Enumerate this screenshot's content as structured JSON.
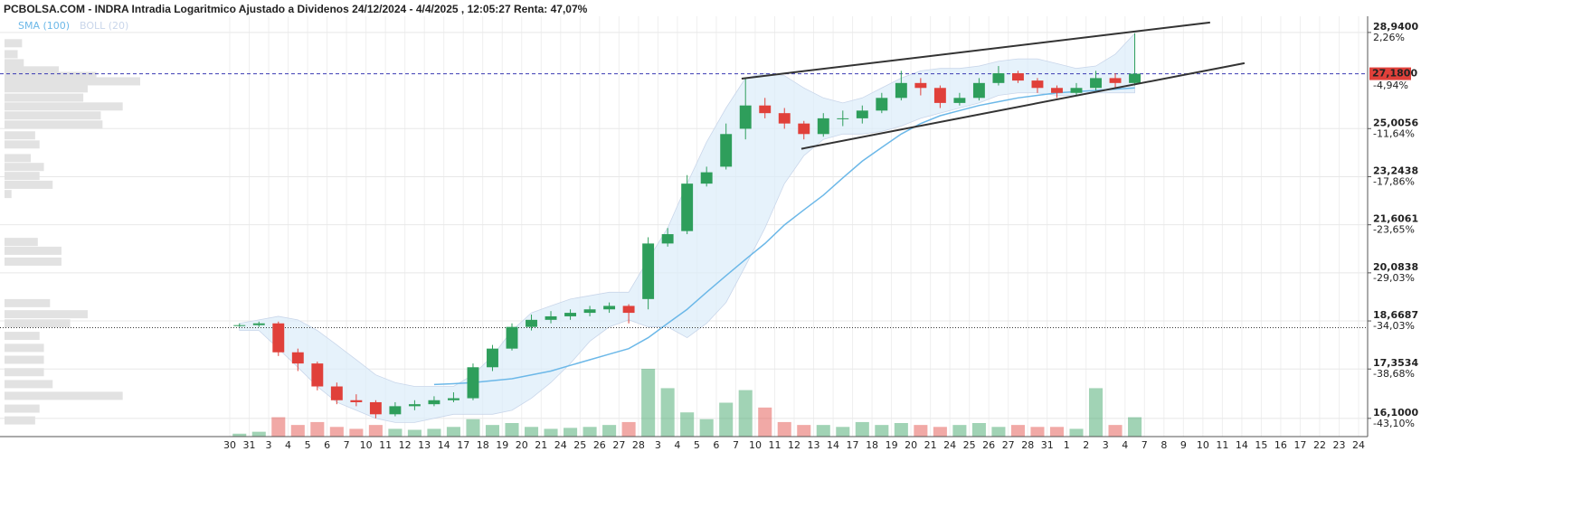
{
  "chart_data": {
    "type": "candlestick",
    "title": "PCBOLSA.COM - INDRA Intradia Logaritmico Ajustado a Dividenos 24/12/2024 - 4/4/2025 , 12:05:27 Renta: 47,07%",
    "categories": [
      "30",
      "31",
      "3",
      "4",
      "5",
      "6",
      "7",
      "10",
      "11",
      "12",
      "13",
      "14",
      "17",
      "18",
      "19",
      "20",
      "21",
      "24",
      "25",
      "26",
      "27",
      "28",
      "3",
      "4",
      "5",
      "6",
      "7",
      "10",
      "11",
      "12",
      "13",
      "14",
      "17",
      "18",
      "19",
      "20",
      "21",
      "24",
      "25",
      "26",
      "27",
      "28",
      "31",
      "1",
      "2",
      "3",
      "4",
      "7",
      "8",
      "9",
      "10",
      "11",
      "14",
      "15",
      "16",
      "17",
      "22",
      "23",
      "24"
    ],
    "open": [
      18.55,
      18.55,
      18.6,
      17.8,
      17.5,
      16.9,
      16.55,
      16.5,
      16.2,
      16.4,
      16.45,
      16.55,
      16.6,
      17.4,
      17.9,
      18.5,
      18.7,
      18.8,
      18.9,
      19.0,
      19.1,
      19.3,
      21.0,
      21.4,
      23.0,
      23.6,
      25.0,
      25.9,
      25.6,
      25.2,
      24.8,
      25.4,
      25.4,
      25.7,
      26.2,
      26.8,
      26.6,
      26.0,
      26.2,
      26.8,
      27.2,
      26.9,
      26.6,
      26.4,
      26.6,
      27.0,
      26.8,
      null,
      null,
      null,
      null,
      null,
      null,
      null,
      null,
      null,
      null,
      null,
      null
    ],
    "high": [
      18.6,
      18.65,
      18.65,
      17.9,
      17.55,
      17.0,
      16.7,
      16.55,
      16.5,
      16.55,
      16.65,
      16.75,
      17.5,
      18.0,
      18.6,
      18.85,
      18.95,
      19.0,
      19.1,
      19.2,
      19.15,
      21.2,
      21.5,
      23.3,
      23.6,
      25.2,
      27.0,
      26.2,
      25.8,
      25.3,
      25.6,
      25.7,
      25.9,
      26.4,
      27.3,
      27.0,
      26.7,
      26.4,
      27.0,
      27.5,
      27.3,
      27.0,
      26.7,
      26.8,
      27.3,
      27.2,
      28.9,
      null,
      null,
      null,
      null,
      null,
      null,
      null,
      null,
      null,
      null,
      null,
      null
    ],
    "low": [
      18.5,
      18.5,
      17.7,
      17.3,
      16.8,
      16.45,
      16.4,
      16.1,
      16.15,
      16.3,
      16.4,
      16.5,
      16.55,
      17.3,
      17.85,
      18.4,
      18.6,
      18.7,
      18.8,
      18.9,
      18.6,
      19.0,
      20.9,
      21.3,
      22.9,
      23.5,
      24.6,
      25.4,
      25.0,
      24.6,
      24.7,
      25.1,
      25.2,
      25.6,
      26.1,
      26.3,
      25.8,
      25.9,
      26.1,
      26.7,
      26.8,
      26.4,
      26.2,
      26.3,
      26.5,
      26.6,
      26.7,
      null,
      null,
      null,
      null,
      null,
      null,
      null,
      null,
      null,
      null,
      null,
      null
    ],
    "close": [
      18.55,
      18.6,
      17.8,
      17.5,
      16.9,
      16.55,
      16.5,
      16.2,
      16.4,
      16.45,
      16.55,
      16.6,
      17.4,
      17.9,
      18.5,
      18.7,
      18.8,
      18.9,
      19.0,
      19.1,
      18.9,
      21.0,
      21.3,
      23.0,
      23.4,
      24.8,
      25.9,
      25.6,
      25.2,
      24.8,
      25.4,
      25.4,
      25.7,
      26.2,
      26.8,
      26.6,
      26.0,
      26.2,
      26.8,
      27.2,
      26.9,
      26.6,
      26.4,
      26.6,
      27.0,
      26.8,
      27.18,
      null,
      null,
      null,
      null,
      null,
      null,
      null,
      null,
      null,
      null,
      null,
      null
    ],
    "volume": [
      3,
      5,
      20,
      12,
      15,
      10,
      8,
      12,
      8,
      7,
      8,
      10,
      18,
      12,
      14,
      10,
      8,
      9,
      10,
      12,
      15,
      70,
      50,
      25,
      18,
      35,
      48,
      30,
      15,
      12,
      12,
      10,
      15,
      12,
      14,
      12,
      10,
      12,
      14,
      10,
      12,
      10,
      10,
      8,
      50,
      12,
      20,
      null,
      null,
      null,
      null,
      null,
      null,
      null,
      null,
      null,
      null,
      null,
      null
    ],
    "up_color": "#2e9e5b",
    "down_color": "#e0403a",
    "sma": {
      "name": "SMA (100)",
      "color": "#6cb8e8",
      "values": [
        null,
        null,
        null,
        null,
        null,
        null,
        null,
        null,
        null,
        null,
        16.95,
        16.97,
        17.0,
        17.05,
        17.1,
        17.2,
        17.3,
        17.45,
        17.6,
        17.75,
        17.9,
        18.2,
        18.6,
        19.0,
        19.5,
        20.0,
        20.5,
        21.0,
        21.6,
        22.1,
        22.6,
        23.2,
        23.8,
        24.3,
        24.8,
        25.2,
        25.5,
        25.7,
        25.9,
        26.05,
        26.2,
        26.3,
        26.4,
        26.45,
        26.5,
        26.55,
        26.6,
        null,
        null,
        null,
        null,
        null,
        null,
        null,
        null,
        null,
        null,
        null,
        null
      ]
    },
    "boll": {
      "name": "BOLL (20)",
      "color": "#c9d6ea",
      "upper": [
        18.6,
        18.7,
        18.8,
        18.7,
        18.4,
        18.0,
        17.6,
        17.2,
        17.0,
        16.9,
        16.9,
        16.9,
        17.2,
        17.7,
        18.4,
        18.9,
        19.1,
        19.3,
        19.4,
        19.5,
        19.5,
        20.5,
        21.5,
        23.0,
        24.5,
        25.8,
        27.0,
        27.2,
        27.1,
        26.6,
        26.2,
        26.0,
        26.2,
        26.6,
        27.0,
        27.3,
        27.4,
        27.4,
        27.5,
        27.7,
        27.8,
        27.8,
        27.6,
        27.4,
        27.5,
        28.0,
        28.9,
        null,
        null,
        null,
        null,
        null,
        null,
        null,
        null,
        null,
        null,
        null,
        null
      ],
      "lower": [
        18.4,
        18.4,
        17.9,
        17.4,
        16.9,
        16.5,
        16.3,
        16.1,
        16.0,
        16.0,
        16.1,
        16.2,
        16.2,
        16.2,
        16.3,
        16.6,
        17.0,
        17.5,
        18.1,
        18.5,
        18.7,
        18.5,
        18.5,
        18.2,
        18.6,
        19.2,
        20.3,
        21.5,
        23.0,
        24.0,
        24.6,
        24.8,
        24.8,
        24.9,
        25.1,
        25.4,
        25.6,
        25.8,
        26.0,
        26.3,
        26.4,
        26.4,
        26.3,
        26.3,
        26.4,
        26.4,
        26.4,
        null,
        null,
        null,
        null,
        null,
        null,
        null,
        null,
        null,
        null,
        null,
        null
      ]
    },
    "log_scale": true,
    "grid": true,
    "ylim": [
      15.66,
      29.66
    ],
    "yticks": [
      {
        "value": 28.94,
        "label": "28,9400"
      },
      {
        "value": 25.0056,
        "label": "25,0056"
      },
      {
        "value": 23.2438,
        "label": "23,2438"
      },
      {
        "value": 21.6061,
        "label": "21,6061"
      },
      {
        "value": 20.0838,
        "label": "20,0838"
      },
      {
        "value": 18.6687,
        "label": "18,6687"
      },
      {
        "value": 17.3534,
        "label": "17,3534"
      },
      {
        "value": 16.1,
        "label": "16,1000"
      }
    ],
    "percent_ticks": [
      {
        "value": 28.94,
        "label": "2,26%"
      },
      {
        "value": 26.9,
        "label": "-4,94%"
      },
      {
        "value": 25.0056,
        "label": "-11,64%"
      },
      {
        "value": 23.2438,
        "label": "-17,86%"
      },
      {
        "value": 21.6061,
        "label": "-23,65%"
      },
      {
        "value": 20.0838,
        "label": "-29,03%"
      },
      {
        "value": 18.6687,
        "label": "-34,03%"
      },
      {
        "value": 17.3534,
        "label": "-38,68%"
      },
      {
        "value": 16.1,
        "label": "-43,10%"
      }
    ],
    "current": {
      "value": 27.18,
      "label": "27,1800"
    },
    "reference": 18.48,
    "volume_profile": {
      "prices": [
        28.47,
        28.0,
        27.62,
        27.32,
        27.09,
        26.87,
        26.58,
        26.21,
        25.86,
        25.51,
        25.16,
        24.75,
        24.41,
        23.91,
        23.59,
        23.27,
        22.96,
        22.64,
        21.05,
        20.77,
        20.43,
        19.18,
        18.86,
        18.6,
        18.25,
        17.92,
        17.6,
        17.27,
        16.96,
        16.66,
        16.34,
        16.05
      ],
      "sizes": [
        20,
        15,
        22,
        62,
        105,
        155,
        95,
        90,
        135,
        110,
        112,
        35,
        40,
        30,
        45,
        40,
        55,
        8,
        38,
        65,
        65,
        52,
        95,
        75,
        40,
        45,
        45,
        45,
        55,
        135,
        40,
        35
      ]
    },
    "trendlines": [
      {
        "x": [
          26.3,
          50.37
        ],
        "y": [
          26.98,
          29.38
        ]
      },
      {
        "x": [
          29.37,
          52.14
        ],
        "y": [
          24.25,
          27.62
        ]
      }
    ]
  }
}
